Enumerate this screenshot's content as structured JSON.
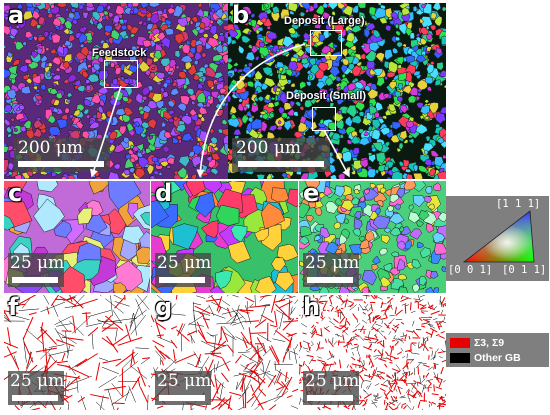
{
  "panels": {
    "a": {
      "letter": "a",
      "roi_label": "Feedstock",
      "scale_label": "200 μm"
    },
    "b": {
      "letter": "b",
      "roi_label_large": "Deposit (Large)",
      "roi_label_small": "Deposit (Small)",
      "scale_label": "200 μm"
    },
    "c": {
      "letter": "c",
      "scale_label": "25 μm"
    },
    "d": {
      "letter": "d",
      "scale_label": "25 μm"
    },
    "e": {
      "letter": "e",
      "scale_label": "25 μm"
    },
    "f": {
      "letter": "f",
      "scale_label": "25 μm"
    },
    "g": {
      "letter": "g",
      "scale_label": "25 μm"
    },
    "h": {
      "letter": "h",
      "scale_label": "25 μm"
    }
  },
  "ipf_key": {
    "top": "[1 1 1]",
    "left": "[0 0 1]",
    "right": "[0 1 1]"
  },
  "legend": {
    "twin": "Σ3, Σ9",
    "other": "Other GB",
    "twin_color": "#e60000",
    "other_color": "#000000"
  }
}
